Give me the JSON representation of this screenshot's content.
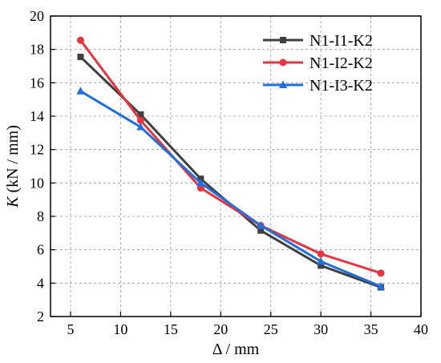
{
  "chart_data": {
    "type": "line",
    "xlabel": "Δ / mm",
    "ylabel_italic": "K",
    "ylabel_rest": " (kN / mm)",
    "xlim": [
      3,
      40
    ],
    "ylim": [
      2,
      20
    ],
    "xticks": [
      5,
      10,
      15,
      20,
      25,
      30,
      35,
      40
    ],
    "yticks": [
      2,
      4,
      6,
      8,
      10,
      12,
      14,
      16,
      18,
      20
    ],
    "grid": true,
    "legend_position": "top-right",
    "x": [
      6,
      12,
      18,
      24,
      30,
      36
    ],
    "series": [
      {
        "name": "N1-I1-K2",
        "color": "#404040",
        "marker": "square",
        "values": [
          17.55,
          14.1,
          10.25,
          7.15,
          5.05,
          3.75
        ]
      },
      {
        "name": "N1-I2-K2",
        "color": "#e8343f",
        "marker": "circle",
        "values": [
          18.55,
          13.75,
          9.7,
          7.45,
          5.75,
          4.6
        ]
      },
      {
        "name": "N1-I3-K2",
        "color": "#1f6fe0",
        "marker": "triangle",
        "values": [
          15.5,
          13.35,
          10.0,
          7.45,
          5.3,
          3.8
        ]
      }
    ]
  }
}
